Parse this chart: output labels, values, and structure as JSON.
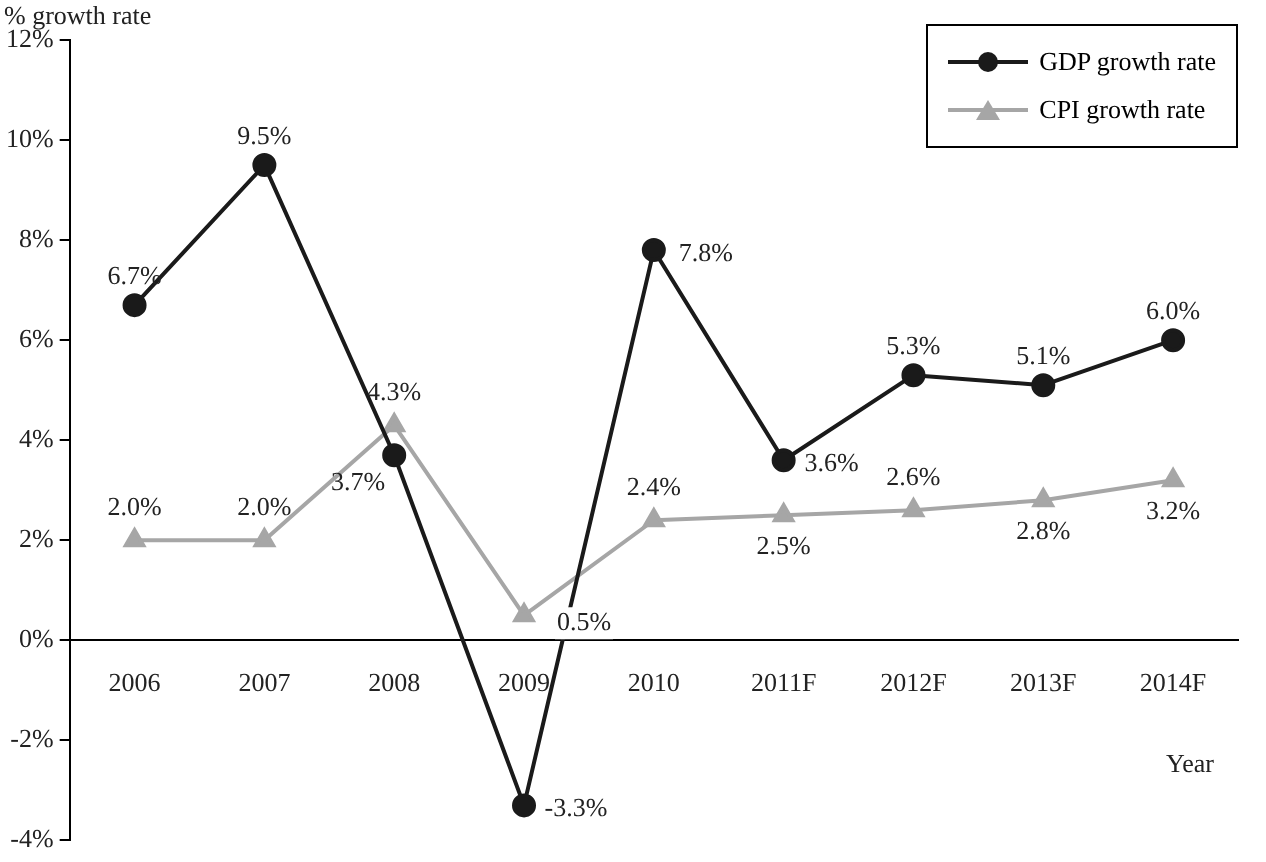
{
  "chart_data": {
    "type": "line",
    "ylabel": "% growth rate",
    "xlabel": "Year",
    "categories": [
      "2006",
      "2007",
      "2008",
      "2009",
      "2010",
      "2011F",
      "2012F",
      "2013F",
      "2014F"
    ],
    "series": [
      {
        "name": "GDP growth rate",
        "color": "#1a1a1a",
        "marker": "circle",
        "values": [
          6.7,
          9.5,
          3.7,
          -3.3,
          7.8,
          3.6,
          5.3,
          5.1,
          6.0
        ],
        "value_labels": [
          "6.7%",
          "9.5%",
          "3.7%",
          "-3.3%",
          "7.8%",
          "3.6%",
          "5.3%",
          "5.1%",
          "6.0%"
        ]
      },
      {
        "name": "CPI growth rate",
        "color": "#a6a6a6",
        "marker": "triangle",
        "values": [
          2.0,
          2.0,
          4.3,
          0.5,
          2.4,
          2.5,
          2.6,
          2.8,
          3.2
        ],
        "value_labels": [
          "2.0%",
          "2.0%",
          "4.3%",
          "0.5%",
          "2.4%",
          "2.5%",
          "2.6%",
          "2.8%",
          "3.2%"
        ]
      }
    ],
    "ylim": [
      -4,
      12
    ],
    "yticks": [
      {
        "value": -4,
        "label": "-4%"
      },
      {
        "value": -2,
        "label": "-2%"
      },
      {
        "value": 0,
        "label": "0%"
      },
      {
        "value": 2,
        "label": "2%"
      },
      {
        "value": 4,
        "label": "4%"
      },
      {
        "value": 6,
        "label": "6%"
      },
      {
        "value": 8,
        "label": "8%"
      },
      {
        "value": 10,
        "label": "10%"
      },
      {
        "value": 12,
        "label": "12%"
      }
    ],
    "grid": false,
    "legend": "top right",
    "line_style": "solid"
  }
}
